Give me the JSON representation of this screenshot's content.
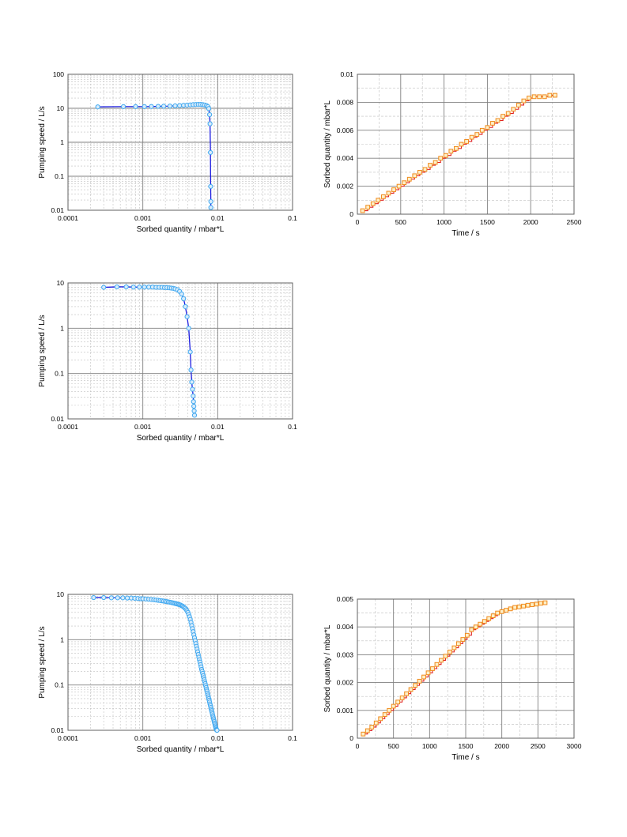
{
  "colors": {
    "speed_line": "#1a1ae0",
    "speed_marker": "#40a8f0",
    "speed_marker_fill": "#d8ecfb",
    "sorb_line": "#e02020",
    "sorb_marker": "#f08a1c",
    "sorb_marker_fill": "#fdf0c8",
    "major_grid": "#808080",
    "minor_grid": "#c0c0c0"
  },
  "chart_data": [
    {
      "id": "speed1",
      "type": "line",
      "xscale": "log",
      "yscale": "log",
      "xlabel": "Sorbed quantity  /   mbar*L",
      "ylabel": "Pumping speed   /   L/s",
      "xlim": [
        0.0001,
        0.1
      ],
      "ylim": [
        0.01,
        100
      ],
      "xticks": [
        "0.0001",
        "0.001",
        "0.01",
        "0.1"
      ],
      "yticks": [
        "0.01",
        "0.1",
        "1",
        "10",
        "100"
      ],
      "grid": true,
      "series": [
        {
          "x": [
            0.00025,
            0.00055,
            0.0008,
            0.00105,
            0.0013,
            0.0016,
            0.0019,
            0.0023,
            0.0027,
            0.0031,
            0.0035,
            0.0039,
            0.0043,
            0.0047,
            0.0051,
            0.0055,
            0.0059,
            0.0063,
            0.0067,
            0.0071,
            0.0074,
            0.0076,
            0.0078,
            0.0079,
            0.008,
            0.00805,
            0.0081,
            0.0081
          ],
          "y": [
            11,
            11.2,
            11.2,
            11.2,
            11.3,
            11.4,
            11.5,
            11.6,
            11.8,
            12,
            12.2,
            12.4,
            12.6,
            12.8,
            12.9,
            13,
            13,
            12.8,
            12.5,
            12,
            11.2,
            9.8,
            6.5,
            3.5,
            0.5,
            0.05,
            0.018,
            0.012
          ]
        }
      ]
    },
    {
      "id": "sorb1",
      "type": "line",
      "xlabel": "Time / s",
      "ylabel": "Sorbed quantity  /  mbar*L",
      "xlim": [
        0,
        2500
      ],
      "ylim": [
        0,
        0.01
      ],
      "xticks": [
        "0",
        "500",
        "1000",
        "1500",
        "2000",
        "2500"
      ],
      "yticks": [
        "0",
        "0.002",
        "0.004",
        "0.006",
        "0.008",
        "0.01"
      ],
      "grid": true,
      "series": [
        {
          "x": [
            60,
            120,
            180,
            240,
            300,
            360,
            420,
            480,
            540,
            600,
            660,
            720,
            780,
            840,
            900,
            960,
            1020,
            1080,
            1140,
            1200,
            1260,
            1320,
            1380,
            1440,
            1500,
            1560,
            1620,
            1680,
            1740,
            1800,
            1860,
            1920,
            1980,
            2040,
            2100,
            2160,
            2220,
            2280
          ],
          "y": [
            0.00025,
            0.0005,
            0.00075,
            0.001,
            0.00125,
            0.0015,
            0.00175,
            0.002,
            0.00225,
            0.0025,
            0.00275,
            0.003,
            0.0032,
            0.0035,
            0.0037,
            0.004,
            0.0042,
            0.0045,
            0.0047,
            0.005,
            0.0052,
            0.0055,
            0.0057,
            0.006,
            0.0062,
            0.0065,
            0.0067,
            0.007,
            0.0072,
            0.0075,
            0.0078,
            0.0081,
            0.0083,
            0.0084,
            0.0084,
            0.0084,
            0.0085,
            0.0085
          ]
        }
      ]
    },
    {
      "id": "speed2",
      "type": "line",
      "xscale": "log",
      "yscale": "log",
      "xlabel": "Sorbed quantity  /   mbar*L",
      "ylabel": "Pumping speed   /   L/s",
      "xlim": [
        0.0001,
        0.1
      ],
      "ylim": [
        0.01,
        10
      ],
      "xticks": [
        "0.0001",
        "0.001",
        "0.01",
        "0.1"
      ],
      "yticks": [
        "0.01",
        "0.1",
        "1",
        "10"
      ],
      "grid": true,
      "series": [
        {
          "x": [
            0.0003,
            0.00045,
            0.0006,
            0.00075,
            0.0009,
            0.00105,
            0.0012,
            0.00135,
            0.0015,
            0.00165,
            0.0018,
            0.00195,
            0.0021,
            0.00225,
            0.0024,
            0.00255,
            0.0027,
            0.0029,
            0.0031,
            0.0033,
            0.0035,
            0.0037,
            0.0039,
            0.0041,
            0.0043,
            0.0044,
            0.0045,
            0.0046,
            0.0047,
            0.00475,
            0.0048,
            0.00485,
            0.0049
          ],
          "y": [
            8,
            8.2,
            8.2,
            8.1,
            8.1,
            8.1,
            8.1,
            8.1,
            8.0,
            8.0,
            8.0,
            7.9,
            7.9,
            7.8,
            7.7,
            7.6,
            7.4,
            7.1,
            6.5,
            5.7,
            4.5,
            3.0,
            1.8,
            1.0,
            0.3,
            0.12,
            0.065,
            0.045,
            0.032,
            0.024,
            0.019,
            0.015,
            0.012
          ]
        }
      ]
    },
    {
      "id": "speed3",
      "type": "line",
      "xscale": "log",
      "yscale": "log",
      "xlabel": "Sorbed quantity  /   mbar*L",
      "ylabel": "Pumping speed   /   L/s",
      "xlim": [
        0.0001,
        0.1
      ],
      "ylim": [
        0.01,
        10
      ],
      "xticks": [
        "0.0001",
        "0.001",
        "0.01",
        "0.1"
      ],
      "yticks": [
        "0.01",
        "0.1",
        "1",
        "10"
      ],
      "grid": true,
      "series": [
        {
          "x": [
            0.00022,
            0.0003,
            0.00038,
            0.00046,
            0.00054,
            0.00062,
            0.0007,
            0.00078,
            0.00086,
            0.00094,
            0.001,
            0.0011,
            0.0012,
            0.0013,
            0.0014,
            0.0015,
            0.0016,
            0.0017,
            0.0018,
            0.0019,
            0.002,
            0.0021,
            0.0022,
            0.0023,
            0.0024,
            0.0025,
            0.0026,
            0.0027,
            0.0028,
            0.0029,
            0.003,
            0.0031,
            0.0032,
            0.0033,
            0.0034,
            0.0035,
            0.0036,
            0.0037,
            0.0038,
            0.0039,
            0.004,
            0.0041,
            0.0042,
            0.0043,
            0.0044,
            0.0045,
            0.0046,
            0.0047,
            0.0048,
            0.0049,
            0.005,
            0.0051,
            0.0052,
            0.0053,
            0.0054,
            0.0055,
            0.0056,
            0.0057,
            0.0058,
            0.0059,
            0.006,
            0.0061,
            0.0062,
            0.0063,
            0.0064,
            0.0065,
            0.0066,
            0.0067,
            0.0068,
            0.0069,
            0.007,
            0.0071,
            0.0072,
            0.0073,
            0.0074,
            0.0075,
            0.0076,
            0.0077,
            0.0078,
            0.0079,
            0.008,
            0.0081,
            0.0082,
            0.0083,
            0.0084,
            0.0085,
            0.0086,
            0.0087,
            0.0088,
            0.0089,
            0.009,
            0.0091,
            0.0092,
            0.0093,
            0.0094,
            0.0095,
            0.0096,
            0.0097,
            0.0098
          ],
          "y": [
            8.5,
            8.5,
            8.4,
            8.4,
            8.4,
            8.3,
            8.3,
            8.2,
            8.1,
            8.0,
            8.0,
            7.9,
            7.8,
            7.7,
            7.6,
            7.5,
            7.4,
            7.3,
            7.2,
            7.1,
            7.0,
            6.9,
            6.8,
            6.7,
            6.6,
            6.5,
            6.4,
            6.3,
            6.2,
            6.1,
            6.0,
            5.9,
            5.8,
            5.6,
            5.5,
            5.3,
            5.1,
            4.9,
            4.6,
            4.3,
            4.0,
            3.6,
            3.2,
            2.8,
            2.4,
            2.05,
            1.75,
            1.5,
            1.28,
            1.1,
            0.95,
            0.82,
            0.71,
            0.62,
            0.54,
            0.47,
            0.41,
            0.36,
            0.32,
            0.28,
            0.25,
            0.22,
            0.2,
            0.18,
            0.16,
            0.145,
            0.13,
            0.118,
            0.107,
            0.097,
            0.088,
            0.08,
            0.073,
            0.066,
            0.06,
            0.055,
            0.05,
            0.046,
            0.042,
            0.038,
            0.035,
            0.032,
            0.029,
            0.027,
            0.025,
            0.023,
            0.021,
            0.0195,
            0.018,
            0.0167,
            0.0155,
            0.0144,
            0.0134,
            0.0125,
            0.0117,
            0.011,
            0.0104,
            0.0101,
            0.01
          ]
        }
      ]
    },
    {
      "id": "sorb2",
      "type": "line",
      "xlabel": "Time / s",
      "ylabel": "Sorbed quantity  /  mbar*L",
      "xlim": [
        0,
        3000
      ],
      "ylim": [
        0,
        0.005
      ],
      "xticks": [
        "0",
        "500",
        "1000",
        "1500",
        "2000",
        "2500",
        "3000"
      ],
      "yticks": [
        "0",
        "0.001",
        "0.002",
        "0.003",
        "0.004",
        "0.005"
      ],
      "grid": true,
      "series": [
        {
          "x": [
            80,
            140,
            200,
            260,
            320,
            380,
            440,
            500,
            560,
            620,
            680,
            740,
            800,
            860,
            920,
            980,
            1040,
            1100,
            1160,
            1220,
            1280,
            1340,
            1400,
            1460,
            1520,
            1580,
            1640,
            1700,
            1760,
            1820,
            1880,
            1940,
            2000,
            2060,
            2120,
            2180,
            2240,
            2300,
            2360,
            2420,
            2480,
            2540,
            2600
          ],
          "y": [
            0.00015,
            0.00027,
            0.0004,
            0.00055,
            0.0007,
            0.00085,
            0.001,
            0.00115,
            0.0013,
            0.00145,
            0.0016,
            0.00175,
            0.0019,
            0.00205,
            0.0022,
            0.00235,
            0.0025,
            0.00265,
            0.0028,
            0.00295,
            0.0031,
            0.00325,
            0.0034,
            0.00355,
            0.0037,
            0.0039,
            0.004,
            0.0041,
            0.0042,
            0.0043,
            0.0044,
            0.0045,
            0.00455,
            0.0046,
            0.00465,
            0.0047,
            0.00472,
            0.00475,
            0.00478,
            0.0048,
            0.00482,
            0.00485,
            0.00487
          ]
        }
      ]
    }
  ]
}
